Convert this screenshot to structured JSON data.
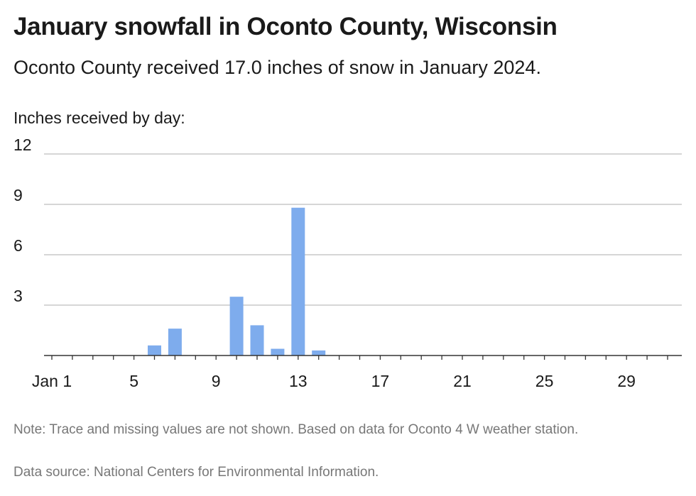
{
  "header": {
    "title": "January snowfall in Oconto County, Wisconsin",
    "subtitle": "Oconto County received 17.0 inches of snow in January 2024."
  },
  "footer": {
    "note": "Note: Trace and missing values are not shown. Based on data for Oconto 4 W weather station.",
    "source": "Data source: National Centers for Environmental Information."
  },
  "colors": {
    "bar": "#7eaced",
    "grid": "#bdbdbd",
    "axis": "#333333"
  },
  "chart_data": {
    "type": "bar",
    "ylabel": "Inches received by day:",
    "ylim": [
      0,
      12
    ],
    "yticks": [
      "3",
      "6",
      "9",
      "12"
    ],
    "ytick_values": [
      3,
      6,
      9,
      12
    ],
    "xlim": [
      1,
      31
    ],
    "xtick_labels": [
      "Jan 1",
      "5",
      "9",
      "13",
      "17",
      "21",
      "25",
      "29"
    ],
    "xtick_values": [
      1,
      5,
      9,
      13,
      17,
      21,
      25,
      29
    ],
    "grid": true,
    "series": [
      {
        "days": [
          6,
          7,
          10,
          11,
          12,
          13,
          14
        ],
        "values": [
          0.6,
          1.6,
          3.5,
          1.8,
          0.4,
          8.8,
          0.3
        ]
      }
    ]
  }
}
